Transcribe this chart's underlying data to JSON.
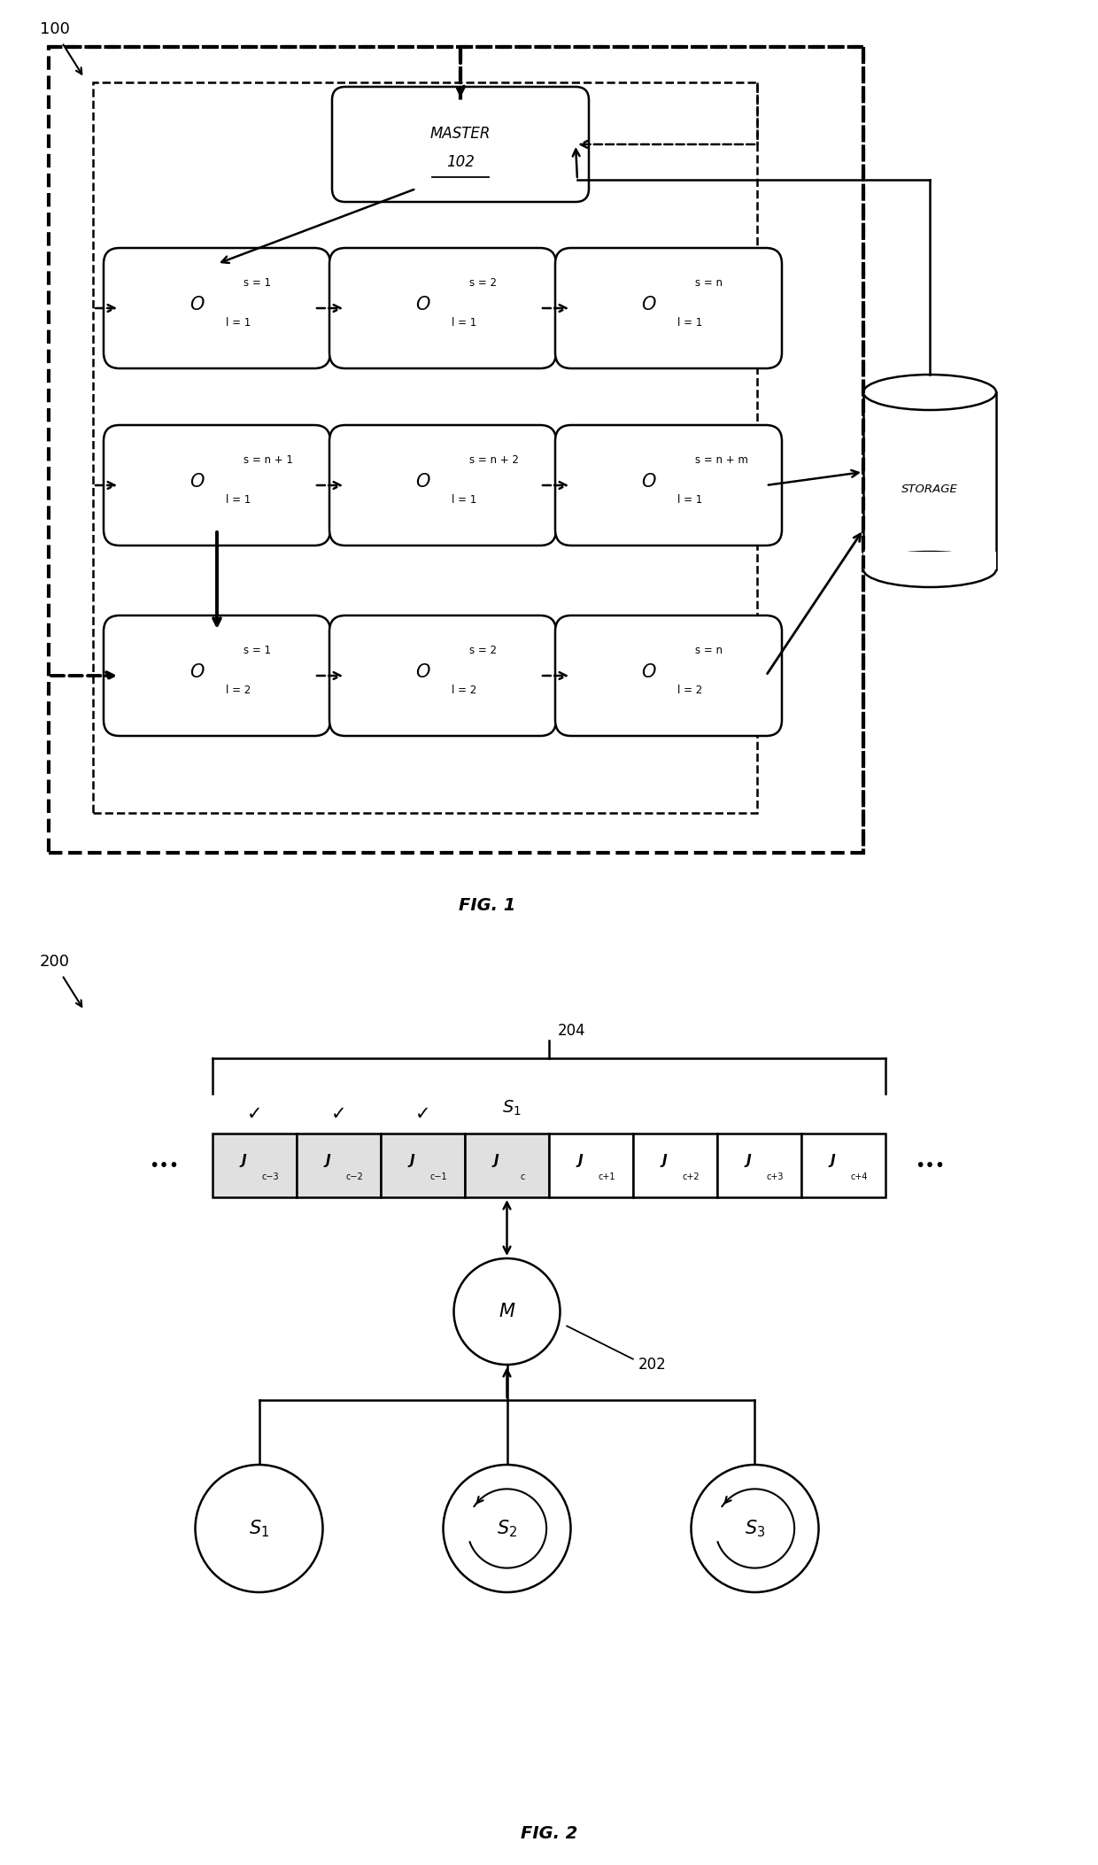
{
  "fig_width": 12.4,
  "fig_height": 21.06,
  "bg_color": "#ffffff",
  "fig1": {
    "label": "100",
    "fig_label": "FIG. 1",
    "row1_nodes": [
      {
        "sup": "s = 1",
        "sub": "l = 1"
      },
      {
        "sup": "s = 2",
        "sub": "l = 1"
      },
      {
        "sup": "s = n",
        "sub": "l = 1"
      }
    ],
    "row2_nodes": [
      {
        "sup": "s = n + 1",
        "sub": "l = 1"
      },
      {
        "sup": "s = n + 2",
        "sub": "l = 1"
      },
      {
        "sup": "s = n + m",
        "sub": "l = 1"
      }
    ],
    "row3_nodes": [
      {
        "sup": "s = 1",
        "sub": "l = 2"
      },
      {
        "sup": "s = 2",
        "sub": "l = 2"
      },
      {
        "sup": "s = n",
        "sub": "l = 2"
      }
    ]
  },
  "fig2": {
    "label": "200",
    "fig_label": "FIG. 2",
    "queue_label": "204",
    "cells": [
      "J_{c-3}",
      "J_{c-2}",
      "J_{c-1}",
      "J_c",
      "J_{c+1}",
      "J_{c+2}",
      "J_{c+3}",
      "J_{c+4}"
    ],
    "num_checked": 3,
    "num_grey": 4,
    "server_labels": [
      "S_1",
      "S_2",
      "S_3"
    ],
    "rotating": [
      false,
      true,
      true
    ],
    "master_ref": "202",
    "queue_ref": "204"
  }
}
